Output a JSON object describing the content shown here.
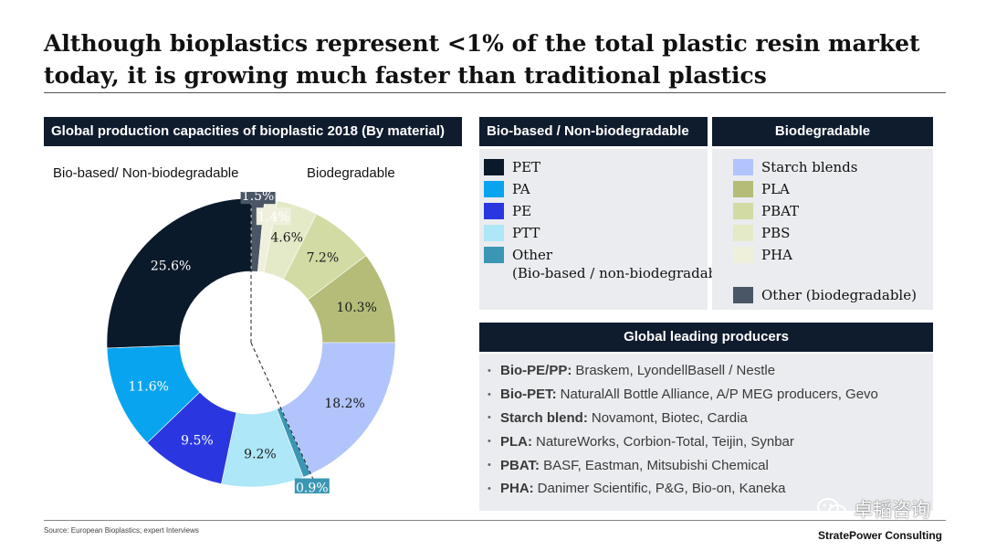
{
  "title": "Although bioplastics represent <1% of the total plastic resin market today, it is growing much faster than traditional plastics",
  "chart_panel": {
    "header": "Global production capacities of bioplastic 2018 (By material)",
    "left_group_label": "Bio-based/ Non-biodegradable",
    "right_group_label": "Biodegradable"
  },
  "chart_data": {
    "type": "pie",
    "variant": "donut",
    "title": "Global production capacities of bioplastic 2018 (By material)",
    "slices": [
      {
        "name": "Other (biodegradable)",
        "value": 1.5,
        "label": "1.5%",
        "color": "#4a5566"
      },
      {
        "name": "PHA",
        "value": 1.4,
        "label": "1.4%",
        "color": "#eff0dc"
      },
      {
        "name": "PBS",
        "value": 4.6,
        "label": "4.6%",
        "color": "#e4e9c8"
      },
      {
        "name": "PBAT",
        "value": 7.2,
        "label": "7.2%",
        "color": "#d2dba3"
      },
      {
        "name": "PLA",
        "value": 10.3,
        "label": "10.3%",
        "color": "#b4bc78"
      },
      {
        "name": "Starch blends",
        "value": 18.2,
        "label": "18.2%",
        "color": "#b1c4fb"
      },
      {
        "name": "Other (Bio-based / non-biodegradable)",
        "value": 0.9,
        "label": "0.9%",
        "color": "#3b96b4"
      },
      {
        "name": "PTT",
        "value": 9.2,
        "label": "9.2%",
        "color": "#aee7f7"
      },
      {
        "name": "PE",
        "value": 9.5,
        "label": "9.5%",
        "color": "#2a37e0"
      },
      {
        "name": "PA",
        "value": 11.6,
        "label": "11.6%",
        "color": "#08a4ef"
      },
      {
        "name": "PET",
        "value": 25.6,
        "label": "25.6%",
        "color": "#0b1a2a"
      }
    ]
  },
  "legend_left": {
    "header": "Bio-based / Non-biodegradable",
    "items": [
      {
        "label": "PET",
        "color": "#0b1a2a"
      },
      {
        "label": "PA",
        "color": "#08a4ef"
      },
      {
        "label": "PE",
        "color": "#2a37e0"
      },
      {
        "label": "PTT",
        "color": "#aee7f7"
      },
      {
        "label": "Other",
        "color": "#3b96b4"
      }
    ],
    "other_sub": "(Bio-based / non-biodegradable)"
  },
  "legend_right": {
    "header": "Biodegradable",
    "items": [
      {
        "label": "Starch blends",
        "color": "#b1c4fb"
      },
      {
        "label": "PLA",
        "color": "#b4bc78"
      },
      {
        "label": "PBAT",
        "color": "#d2dba3"
      },
      {
        "label": "PBS",
        "color": "#e4e9c8"
      },
      {
        "label": "PHA",
        "color": "#eff0dc"
      },
      {
        "label": "Other (biodegradable)",
        "color": "#4a5566"
      }
    ]
  },
  "producers": {
    "header": "Global leading producers",
    "items": [
      {
        "name": "Bio-PE/PP:",
        "text": "Braskem, LyondellBasell / Nestle"
      },
      {
        "name": "Bio-PET:",
        "text": "NaturalAll Bottle Alliance, A/P MEG producers, Gevo"
      },
      {
        "name": "Starch blend:",
        "text": "Novamont, Biotec, Cardia"
      },
      {
        "name": "PLA:",
        "text": "NatureWorks, Corbion-Total, Teijin, Synbar"
      },
      {
        "name": "PBAT:",
        "text": "BASF, Eastman, Mitsubishi Chemical"
      },
      {
        "name": "PHA:",
        "text": "Danimer Scientific, P&G, Bio-on, Kaneka"
      }
    ]
  },
  "footer": {
    "source": "Source: European Bioplastics; expert Interviews",
    "brand": "StratePower Consulting",
    "watermark": "卓韬咨询",
    "watermark_icon": "wechat-icon"
  }
}
